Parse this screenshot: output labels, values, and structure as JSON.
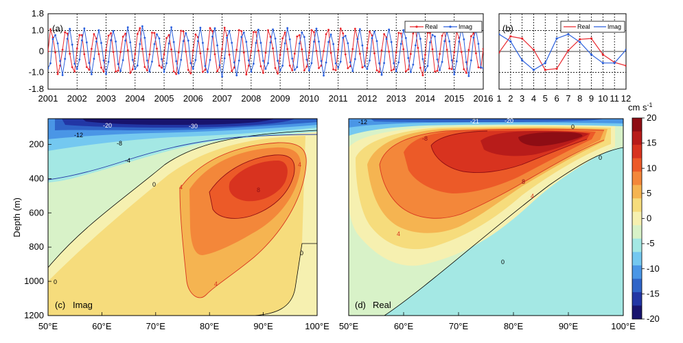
{
  "chart_data": [
    {
      "id": "a",
      "type": "line",
      "panel_label": "(a)",
      "x_ticks": [
        "2001",
        "2002",
        "2003",
        "2004",
        "2005",
        "2006",
        "2007",
        "2008",
        "2009",
        "2010",
        "2011",
        "2012",
        "2013",
        "2014",
        "2015",
        "2016"
      ],
      "y_ticks": [
        "1.8",
        "1.0",
        "0",
        "-1.0",
        "-1.8"
      ],
      "ylim": [
        -1.8,
        1.8
      ],
      "series": [
        {
          "name": "Real",
          "color": "#e8262c",
          "phase": 0.0
        },
        {
          "name": "Imag",
          "color": "#2a5fdc",
          "phase": 1.5708
        }
      ],
      "months": 180,
      "amplitude_approx": 1.0,
      "dominant_period_months": 6,
      "legend": [
        "Real",
        "Imag"
      ]
    },
    {
      "id": "b",
      "type": "line",
      "panel_label": "(b)",
      "x": [
        "1",
        "2",
        "3",
        "4",
        "5",
        "6",
        "7",
        "8",
        "9",
        "10",
        "11",
        "12"
      ],
      "ylim": [
        -1.8,
        1.8
      ],
      "series": [
        {
          "name": "Real",
          "color": "#e8262c",
          "values": [
            -0.05,
            0.72,
            0.62,
            0.08,
            -0.88,
            -0.82,
            0.05,
            0.58,
            0.62,
            -0.15,
            -0.52,
            -0.68
          ]
        },
        {
          "name": "Imag",
          "color": "#2a5fdc",
          "values": [
            0.82,
            0.48,
            -0.42,
            -0.88,
            -0.55,
            0.62,
            0.82,
            0.45,
            -0.15,
            -0.55,
            -0.55,
            0.08
          ]
        }
      ],
      "legend": [
        "Real",
        "Imag"
      ]
    },
    {
      "id": "c",
      "type": "heatmap",
      "panel_label": "(c)",
      "panel_name": "Imag",
      "ylabel": "Depth (m)",
      "x_ticks": [
        "50°E",
        "60°E",
        "70°E",
        "80°E",
        "90°E",
        "100°E"
      ],
      "y_ticks": [
        "200",
        "400",
        "600",
        "800",
        "1000",
        "1200"
      ],
      "xlim_lon": [
        50,
        100
      ],
      "ylim_depth": [
        1200,
        50
      ],
      "contour_labels": [
        "-30",
        "-20",
        "-12",
        "-8",
        "-4",
        "0",
        "4",
        "8",
        "0",
        "0",
        "4",
        "4"
      ]
    },
    {
      "id": "d",
      "type": "heatmap",
      "panel_label": "(d)",
      "panel_name": "Real",
      "x_ticks": [
        "50°E",
        "60°E",
        "70°E",
        "80°E",
        "90°E",
        "100°E"
      ],
      "xlim_lon": [
        50,
        100
      ],
      "ylim_depth": [
        1200,
        50
      ],
      "contour_labels": [
        "-12",
        "-21",
        "-20",
        "-8",
        "4",
        "0",
        "4",
        "8",
        "0",
        "0"
      ]
    },
    {
      "id": "colorbar",
      "type": "colorbar",
      "unit_label": "cm s",
      "unit_exponent": "-1",
      "ticks": [
        "20",
        "15",
        "10",
        "5",
        "0",
        "-5",
        "-10",
        "-15",
        "-20"
      ],
      "range": [
        -20,
        20
      ],
      "colors": [
        "#18146e",
        "#2236a5",
        "#2f64c8",
        "#4a96e6",
        "#74c8f0",
        "#a4e8e4",
        "#d8f2c8",
        "#f6f0b0",
        "#f6dc7c",
        "#f5b451",
        "#f3873a",
        "#ec5a28",
        "#d8331f",
        "#b81c1a",
        "#8e0d14"
      ]
    }
  ]
}
